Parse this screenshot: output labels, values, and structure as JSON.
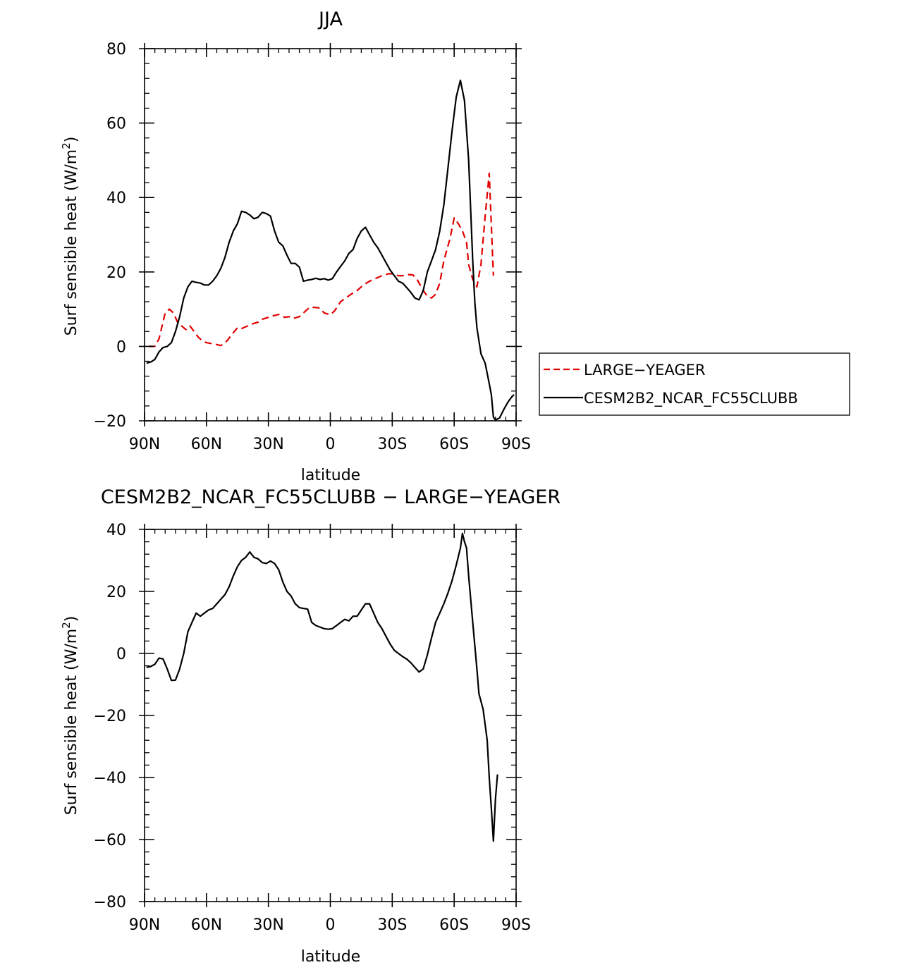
{
  "chart_data": [
    {
      "type": "line",
      "title": "JJA",
      "xlabel": "latitude",
      "ylabel": "Surf sensible heat (W/m2)",
      "ylabel_main": "Surf sensible heat (W/m",
      "ylabel_sup": "2",
      "ylabel_close": ")",
      "xlim": [
        90,
        -90
      ],
      "ylim": [
        -20,
        80
      ],
      "xticks": [
        90,
        60,
        30,
        0,
        -30,
        -60,
        -90
      ],
      "xtick_labels": [
        "90N",
        "60N",
        "30N",
        "0",
        "30S",
        "60S",
        "90S"
      ],
      "yticks": [
        -20,
        0,
        20,
        40,
        60,
        80
      ],
      "ytick_labels": [
        "−20",
        "0",
        "20",
        "40",
        "60",
        "80"
      ],
      "legend": "right",
      "grid": false,
      "series": [
        {
          "name": "LARGE−YEAGER",
          "color": "#e00000",
          "dash": "dashed",
          "points": [
            [
              88,
              0
            ],
            [
              85,
              0
            ],
            [
              83,
              2
            ],
            [
              80,
              9
            ],
            [
              78,
              10
            ],
            [
              76,
              9
            ],
            [
              74,
              6.5
            ],
            [
              72,
              5.5
            ],
            [
              70,
              4.5
            ],
            [
              68,
              5.5
            ],
            [
              66,
              4
            ],
            [
              64,
              2.5
            ],
            [
              62,
              1.5
            ],
            [
              60,
              1
            ],
            [
              58,
              0.8
            ],
            [
              55,
              0.5
            ],
            [
              53,
              0.2
            ],
            [
              50,
              1.5
            ],
            [
              48,
              3
            ],
            [
              45,
              5
            ],
            [
              43,
              4.8
            ],
            [
              40,
              5.5
            ],
            [
              38,
              6
            ],
            [
              35,
              6.5
            ],
            [
              33,
              7.3
            ],
            [
              30,
              7.8
            ],
            [
              27,
              8.3
            ],
            [
              25,
              8.6
            ],
            [
              22,
              7.8
            ],
            [
              20,
              8
            ],
            [
              18,
              7.5
            ],
            [
              15,
              8
            ],
            [
              12,
              9.5
            ],
            [
              10,
              10.5
            ],
            [
              8,
              10.5
            ],
            [
              5,
              10.3
            ],
            [
              3,
              9
            ],
            [
              0,
              8.5
            ],
            [
              -2,
              9.5
            ],
            [
              -5,
              12
            ],
            [
              -8,
              13.2
            ],
            [
              -10,
              14
            ],
            [
              -13,
              15
            ],
            [
              -15,
              16
            ],
            [
              -18,
              17.2
            ],
            [
              -20,
              17.8
            ],
            [
              -23,
              18.5
            ],
            [
              -25,
              19
            ],
            [
              -28,
              19.5
            ],
            [
              -30,
              19.5
            ],
            [
              -33,
              19
            ],
            [
              -35,
              19
            ],
            [
              -38,
              19.3
            ],
            [
              -40,
              19.2
            ],
            [
              -42,
              18
            ],
            [
              -45,
              15
            ],
            [
              -47,
              13.5
            ],
            [
              -49,
              13
            ],
            [
              -51,
              14
            ],
            [
              -53,
              17
            ],
            [
              -55,
              23
            ],
            [
              -58,
              29
            ],
            [
              -60,
              34.5
            ],
            [
              -62,
              33
            ],
            [
              -64,
              31
            ],
            [
              -66,
              28
            ],
            [
              -67,
              22
            ],
            [
              -69,
              18
            ],
            [
              -71,
              16
            ],
            [
              -73,
              22
            ],
            [
              -75,
              35
            ],
            [
              -77,
              46.5
            ],
            [
              -79,
              19
            ]
          ]
        },
        {
          "name": "CESM2B2_NCAR_FC55CLUBB",
          "color": "#000000",
          "dash": "solid",
          "points": [
            [
              89,
              -4.5
            ],
            [
              87,
              -4.2
            ],
            [
              85,
              -3.5
            ],
            [
              83,
              -1.5
            ],
            [
              81,
              -0.3
            ],
            [
              79,
              0
            ],
            [
              77,
              1
            ],
            [
              75,
              4
            ],
            [
              73,
              8
            ],
            [
              71,
              13
            ],
            [
              69,
              16
            ],
            [
              67,
              17.5
            ],
            [
              65,
              17.2
            ],
            [
              63,
              17
            ],
            [
              61,
              16.5
            ],
            [
              59,
              16.5
            ],
            [
              57,
              17.5
            ],
            [
              55,
              19
            ],
            [
              53,
              21
            ],
            [
              51,
              24
            ],
            [
              49,
              28
            ],
            [
              47,
              31
            ],
            [
              45,
              33
            ],
            [
              43,
              36.3
            ],
            [
              41,
              36
            ],
            [
              39,
              35.3
            ],
            [
              37,
              34.3
            ],
            [
              35,
              34.7
            ],
            [
              33,
              36
            ],
            [
              31,
              35.7
            ],
            [
              29,
              35
            ],
            [
              27,
              31
            ],
            [
              25,
              28
            ],
            [
              23,
              27
            ],
            [
              21,
              24.5
            ],
            [
              19,
              22.3
            ],
            [
              17,
              22.3
            ],
            [
              15,
              21.3
            ],
            [
              13,
              17.5
            ],
            [
              11,
              17.8
            ],
            [
              9,
              18
            ],
            [
              7,
              18.3
            ],
            [
              5,
              18
            ],
            [
              3,
              18.2
            ],
            [
              1,
              17.8
            ],
            [
              -1,
              18.2
            ],
            [
              -3,
              20
            ],
            [
              -5,
              21.5
            ],
            [
              -7,
              23
            ],
            [
              -9,
              25
            ],
            [
              -11,
              26
            ],
            [
              -13,
              29
            ],
            [
              -15,
              31
            ],
            [
              -17,
              32
            ],
            [
              -19,
              30
            ],
            [
              -21,
              28
            ],
            [
              -23,
              26.5
            ],
            [
              -25,
              24.5
            ],
            [
              -27,
              22.5
            ],
            [
              -29,
              20.5
            ],
            [
              -31,
              19
            ],
            [
              -33,
              17.5
            ],
            [
              -35,
              17
            ],
            [
              -37,
              15.8
            ],
            [
              -39,
              14.5
            ],
            [
              -41,
              13
            ],
            [
              -43,
              12.5
            ],
            [
              -45,
              15
            ],
            [
              -47,
              20
            ],
            [
              -49,
              23
            ],
            [
              -51,
              26
            ],
            [
              -53,
              31
            ],
            [
              -55,
              38
            ],
            [
              -57,
              48
            ],
            [
              -59,
              58
            ],
            [
              -61,
              67
            ],
            [
              -63,
              71.5
            ],
            [
              -65,
              66
            ],
            [
              -67,
              50
            ],
            [
              -69,
              23
            ],
            [
              -70,
              12
            ],
            [
              -71,
              5
            ],
            [
              -73,
              -2
            ],
            [
              -75,
              -4.5
            ],
            [
              -77,
              -10
            ],
            [
              -78,
              -13
            ],
            [
              -79,
              -19
            ],
            [
              -80,
              -19.8
            ],
            [
              -82,
              -19.2
            ],
            [
              -84,
              -17
            ],
            [
              -86,
              -15
            ],
            [
              -88,
              -13.5
            ],
            [
              -89,
              -13
            ]
          ]
        }
      ]
    },
    {
      "type": "line",
      "title": "CESM2B2_NCAR_FC55CLUBB − LARGE−YEAGER",
      "xlabel": "latitude",
      "ylabel": "Surf sensible heat (W/m2)",
      "ylabel_main": "Surf sensible heat (W/m",
      "ylabel_sup": "2",
      "ylabel_close": ")",
      "xlim": [
        90,
        -90
      ],
      "ylim": [
        -80,
        40
      ],
      "xticks": [
        90,
        60,
        30,
        0,
        -30,
        -60,
        -90
      ],
      "xtick_labels": [
        "90N",
        "60N",
        "30N",
        "0",
        "30S",
        "60S",
        "90S"
      ],
      "yticks": [
        -80,
        -60,
        -40,
        -20,
        0,
        20,
        40
      ],
      "ytick_labels": [
        "−80",
        "−60",
        "−40",
        "−20",
        "0",
        "20",
        "40"
      ],
      "grid": false,
      "series": [
        {
          "color": "#000000",
          "dash": "solid",
          "points": [
            [
              89,
              -4.5
            ],
            [
              87,
              -4.2
            ],
            [
              85,
              -3.5
            ],
            [
              83,
              -1.5
            ],
            [
              81,
              -1.8
            ],
            [
              79,
              -5
            ],
            [
              77,
              -8.7
            ],
            [
              75,
              -8.6
            ],
            [
              73,
              -5
            ],
            [
              71,
              0
            ],
            [
              69,
              7
            ],
            [
              67,
              10
            ],
            [
              65,
              13
            ],
            [
              63,
              12
            ],
            [
              61,
              13
            ],
            [
              59,
              14
            ],
            [
              57,
              14.5
            ],
            [
              55,
              16
            ],
            [
              53,
              17.5
            ],
            [
              51,
              19
            ],
            [
              49,
              21.5
            ],
            [
              47,
              25
            ],
            [
              45,
              28
            ],
            [
              43,
              30
            ],
            [
              41,
              31
            ],
            [
              39,
              32.7
            ],
            [
              37,
              31
            ],
            [
              35,
              30.5
            ],
            [
              33,
              29.3
            ],
            [
              31,
              29
            ],
            [
              29,
              29.8
            ],
            [
              27,
              29
            ],
            [
              25,
              27
            ],
            [
              23,
              23
            ],
            [
              21,
              20
            ],
            [
              19,
              18.5
            ],
            [
              17,
              16
            ],
            [
              15,
              14.8
            ],
            [
              13,
              14.5
            ],
            [
              11,
              14.3
            ],
            [
              9,
              10
            ],
            [
              7,
              9
            ],
            [
              5,
              8.5
            ],
            [
              3,
              8
            ],
            [
              1,
              7.8
            ],
            [
              -1,
              8
            ],
            [
              -3,
              9
            ],
            [
              -5,
              10
            ],
            [
              -7,
              11
            ],
            [
              -9,
              10.5
            ],
            [
              -11,
              12
            ],
            [
              -13,
              12
            ],
            [
              -15,
              14
            ],
            [
              -17,
              16
            ],
            [
              -19,
              16
            ],
            [
              -21,
              13
            ],
            [
              -23,
              10
            ],
            [
              -25,
              8
            ],
            [
              -27,
              5.5
            ],
            [
              -29,
              3
            ],
            [
              -31,
              1
            ],
            [
              -33,
              0
            ],
            [
              -35,
              -1
            ],
            [
              -37,
              -1.8
            ],
            [
              -39,
              -3
            ],
            [
              -41,
              -4.5
            ],
            [
              -43,
              -6
            ],
            [
              -45,
              -5
            ],
            [
              -47,
              -0.5
            ],
            [
              -49,
              5
            ],
            [
              -51,
              10
            ],
            [
              -53,
              13
            ],
            [
              -55,
              16
            ],
            [
              -57,
              19.5
            ],
            [
              -59,
              23.5
            ],
            [
              -61,
              28.5
            ],
            [
              -63,
              34
            ],
            [
              -64,
              38.7
            ],
            [
              -65,
              36
            ],
            [
              -66,
              34
            ],
            [
              -67,
              25
            ],
            [
              -69,
              10
            ],
            [
              -71,
              -5
            ],
            [
              -72,
              -13
            ],
            [
              -74,
              -18
            ],
            [
              -76,
              -28
            ],
            [
              -77,
              -40
            ],
            [
              -78,
              -50
            ],
            [
              -79,
              -60.5
            ],
            [
              -80,
              -47
            ],
            [
              -81,
              -39
            ]
          ]
        }
      ]
    }
  ]
}
